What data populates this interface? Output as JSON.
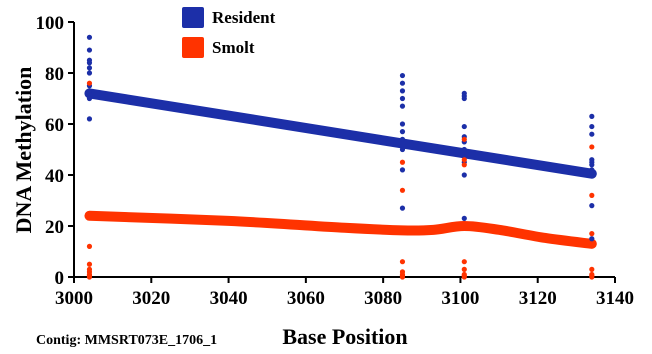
{
  "chart_data": {
    "type": "scatter",
    "xlabel": "Base Position",
    "ylabel": "DNA Methylation",
    "caption": "Contig: MMSRT073E_1706_1",
    "xlim": [
      3000,
      3140
    ],
    "ylim": [
      0,
      100
    ],
    "xticks": [
      3000,
      3020,
      3040,
      3060,
      3080,
      3100,
      3120,
      3140
    ],
    "yticks": [
      0,
      20,
      40,
      60,
      80,
      100
    ],
    "legend_position": "top-left",
    "series": [
      {
        "name": "Resident",
        "color": "#1c2fa8",
        "points": [
          {
            "x": 3004,
            "y": 94
          },
          {
            "x": 3004,
            "y": 89
          },
          {
            "x": 3004,
            "y": 85
          },
          {
            "x": 3004,
            "y": 84
          },
          {
            "x": 3004,
            "y": 82
          },
          {
            "x": 3004,
            "y": 80
          },
          {
            "x": 3004,
            "y": 75
          },
          {
            "x": 3004,
            "y": 73
          },
          {
            "x": 3004,
            "y": 72
          },
          {
            "x": 3004,
            "y": 70
          },
          {
            "x": 3004,
            "y": 62
          },
          {
            "x": 3085,
            "y": 79
          },
          {
            "x": 3085,
            "y": 76
          },
          {
            "x": 3085,
            "y": 73
          },
          {
            "x": 3085,
            "y": 70
          },
          {
            "x": 3085,
            "y": 67
          },
          {
            "x": 3085,
            "y": 60
          },
          {
            "x": 3085,
            "y": 57
          },
          {
            "x": 3085,
            "y": 54
          },
          {
            "x": 3085,
            "y": 50
          },
          {
            "x": 3085,
            "y": 42
          },
          {
            "x": 3085,
            "y": 27
          },
          {
            "x": 3101,
            "y": 72
          },
          {
            "x": 3101,
            "y": 71
          },
          {
            "x": 3101,
            "y": 70
          },
          {
            "x": 3101,
            "y": 59
          },
          {
            "x": 3101,
            "y": 55
          },
          {
            "x": 3101,
            "y": 53
          },
          {
            "x": 3101,
            "y": 50
          },
          {
            "x": 3101,
            "y": 45
          },
          {
            "x": 3101,
            "y": 40
          },
          {
            "x": 3101,
            "y": 23
          },
          {
            "x": 3134,
            "y": 63
          },
          {
            "x": 3134,
            "y": 59
          },
          {
            "x": 3134,
            "y": 56
          },
          {
            "x": 3134,
            "y": 46
          },
          {
            "x": 3134,
            "y": 45
          },
          {
            "x": 3134,
            "y": 44
          },
          {
            "x": 3134,
            "y": 42
          },
          {
            "x": 3134,
            "y": 41
          },
          {
            "x": 3134,
            "y": 28
          },
          {
            "x": 3134,
            "y": 15
          }
        ],
        "fit_line": [
          {
            "x": 3004,
            "y": 72
          },
          {
            "x": 3134,
            "y": 40.5
          }
        ]
      },
      {
        "name": "Smolt",
        "color": "#ff3300",
        "points": [
          {
            "x": 3004,
            "y": 76
          },
          {
            "x": 3004,
            "y": 12
          },
          {
            "x": 3004,
            "y": 5
          },
          {
            "x": 3004,
            "y": 3
          },
          {
            "x": 3004,
            "y": 2
          },
          {
            "x": 3004,
            "y": 1
          },
          {
            "x": 3004,
            "y": 0.5
          },
          {
            "x": 3004,
            "y": 0
          },
          {
            "x": 3085,
            "y": 45
          },
          {
            "x": 3085,
            "y": 34
          },
          {
            "x": 3085,
            "y": 6
          },
          {
            "x": 3085,
            "y": 2
          },
          {
            "x": 3085,
            "y": 1
          },
          {
            "x": 3085,
            "y": 0.5
          },
          {
            "x": 3085,
            "y": 0
          },
          {
            "x": 3101,
            "y": 54
          },
          {
            "x": 3101,
            "y": 46
          },
          {
            "x": 3101,
            "y": 44
          },
          {
            "x": 3101,
            "y": 6
          },
          {
            "x": 3101,
            "y": 3
          },
          {
            "x": 3101,
            "y": 1
          },
          {
            "x": 3101,
            "y": 0.5
          },
          {
            "x": 3101,
            "y": 0
          },
          {
            "x": 3134,
            "y": 51
          },
          {
            "x": 3134,
            "y": 32
          },
          {
            "x": 3134,
            "y": 17
          },
          {
            "x": 3134,
            "y": 3
          },
          {
            "x": 3134,
            "y": 1
          },
          {
            "x": 3134,
            "y": 0.5
          },
          {
            "x": 3134,
            "y": 0
          }
        ],
        "fit_line": [
          {
            "x": 3004,
            "y": 24
          },
          {
            "x": 3040,
            "y": 22
          },
          {
            "x": 3070,
            "y": 19.3
          },
          {
            "x": 3085,
            "y": 18.3
          },
          {
            "x": 3093,
            "y": 18.5
          },
          {
            "x": 3101,
            "y": 20
          },
          {
            "x": 3110,
            "y": 18.5
          },
          {
            "x": 3122,
            "y": 15.3
          },
          {
            "x": 3134,
            "y": 13
          }
        ]
      }
    ]
  }
}
